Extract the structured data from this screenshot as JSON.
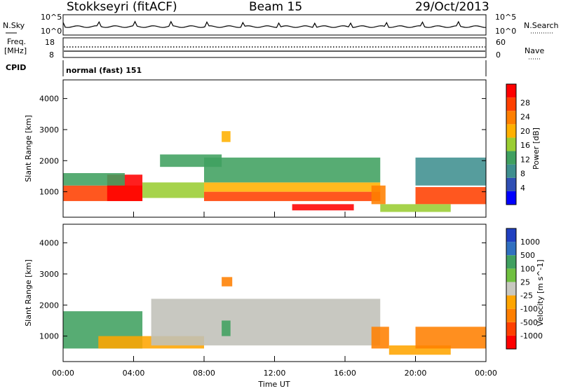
{
  "header": {
    "station": "Stokkseyri (fitACF)",
    "beam": "Beam 15",
    "date": "29/Oct/2013"
  },
  "panels": {
    "noise": {
      "left_label": "N.Sky",
      "right_label": "N.Search",
      "ticks_left": [
        "10^5",
        "10^0"
      ],
      "ticks_right": [
        "10^5",
        "10^0"
      ]
    },
    "freq": {
      "left_label_1": "Freq.",
      "left_label_2": "[MHz]",
      "right_label": "Nave",
      "ticks_left": [
        "18",
        "8"
      ],
      "ticks_right": [
        "60",
        "0"
      ]
    },
    "cpid": {
      "label": "CPID",
      "value": "normal (fast) 151"
    }
  },
  "colors": {
    "power_scale": [
      "#0000ff",
      "#2f4fb4",
      "#3f8f8f",
      "#40a060",
      "#9acd32",
      "#ffb000",
      "#ff7f00",
      "#ff4000",
      "#ff0000"
    ],
    "velocity_scale": [
      "#2040c0",
      "#3070c0",
      "#40a060",
      "#70c040",
      "#c8c8c0",
      "#ffa500",
      "#ff7f00",
      "#ff4000",
      "#ff0000"
    ],
    "ground_scatter": "#c0c0b8"
  },
  "chart_data": [
    {
      "type": "heatmap",
      "title": "",
      "xlabel": "Time UT",
      "ylabel": "Slant Range [km]",
      "x_range": [
        "00:00",
        "24:00"
      ],
      "ylim": [
        180,
        4600
      ],
      "x_ticks": [
        "00:00",
        "04:00",
        "08:00",
        "12:00",
        "16:00",
        "20:00",
        "00:00"
      ],
      "y_ticks": [
        "1000",
        "2000",
        "3000",
        "4000"
      ],
      "colorbar": {
        "label": "Power [dB]",
        "ticks": [
          "4",
          "8",
          "12",
          "16",
          "20",
          "24",
          "28"
        ],
        "range": [
          0,
          30
        ]
      },
      "regions": [
        {
          "t0": 0.0,
          "t1": 4.5,
          "r0": 700,
          "r1": 1200,
          "value": 24
        },
        {
          "t0": 2.5,
          "t1": 4.5,
          "r0": 700,
          "r1": 1550,
          "value": 27
        },
        {
          "t0": 0.0,
          "t1": 3.5,
          "r0": 1200,
          "r1": 1600,
          "value": 12
        },
        {
          "t0": 4.5,
          "t1": 8.0,
          "r0": 800,
          "r1": 1300,
          "value": 16
        },
        {
          "t0": 8.0,
          "t1": 18.0,
          "r0": 700,
          "r1": 1000,
          "value": 25
        },
        {
          "t0": 8.0,
          "t1": 18.0,
          "r0": 1000,
          "r1": 1300,
          "value": 17
        },
        {
          "t0": 8.0,
          "t1": 18.0,
          "r0": 1300,
          "r1": 2100,
          "value": 12
        },
        {
          "t0": 13.0,
          "t1": 16.5,
          "r0": 400,
          "r1": 600,
          "value": 28
        },
        {
          "t0": 17.5,
          "t1": 18.3,
          "r0": 600,
          "r1": 1200,
          "value": 22
        },
        {
          "t0": 20.0,
          "t1": 24.0,
          "r0": 600,
          "r1": 1150,
          "value": 26
        },
        {
          "t0": 18.0,
          "t1": 22.0,
          "r0": 350,
          "r1": 600,
          "value": 14
        },
        {
          "t0": 5.5,
          "t1": 9.0,
          "r0": 1800,
          "r1": 2200,
          "value": 10
        },
        {
          "t0": 9.0,
          "t1": 9.5,
          "r0": 2600,
          "r1": 2950,
          "value": 18
        },
        {
          "t0": 20.0,
          "t1": 24.0,
          "r0": 1200,
          "r1": 2100,
          "value": 8
        }
      ]
    },
    {
      "type": "heatmap",
      "title": "",
      "xlabel": "Time UT",
      "ylabel": "Slant Range [km]",
      "x_range": [
        "00:00",
        "24:00"
      ],
      "ylim": [
        180,
        4600
      ],
      "x_ticks": [
        "00:00",
        "04:00",
        "08:00",
        "12:00",
        "16:00",
        "20:00",
        "00:00"
      ],
      "y_ticks": [
        "1000",
        "2000",
        "3000",
        "4000"
      ],
      "colorbar": {
        "label": "Velocity [m s^-1]",
        "ticks": [
          "1000",
          "500",
          "100",
          "25",
          "-25",
          "-100",
          "-500",
          "-1000"
        ]
      },
      "regions": [
        {
          "t0": 0.0,
          "t1": 4.5,
          "r0": 600,
          "r1": 1800,
          "value": 100
        },
        {
          "t0": 2.0,
          "t1": 8.0,
          "r0": 600,
          "r1": 1000,
          "value": -100
        },
        {
          "t0": 5.0,
          "t1": 18.0,
          "r0": 700,
          "r1": 2200,
          "value": 0
        },
        {
          "t0": 17.5,
          "t1": 18.5,
          "r0": 600,
          "r1": 1300,
          "value": -500
        },
        {
          "t0": 18.5,
          "t1": 22.0,
          "r0": 400,
          "r1": 700,
          "value": -100
        },
        {
          "t0": 20.0,
          "t1": 24.0,
          "r0": 600,
          "r1": 1300,
          "value": -200
        },
        {
          "t0": 9.0,
          "t1": 9.6,
          "r0": 2600,
          "r1": 2900,
          "value": -500
        },
        {
          "t0": 9.0,
          "t1": 9.5,
          "r0": 1000,
          "r1": 1500,
          "value": 400
        }
      ]
    }
  ]
}
